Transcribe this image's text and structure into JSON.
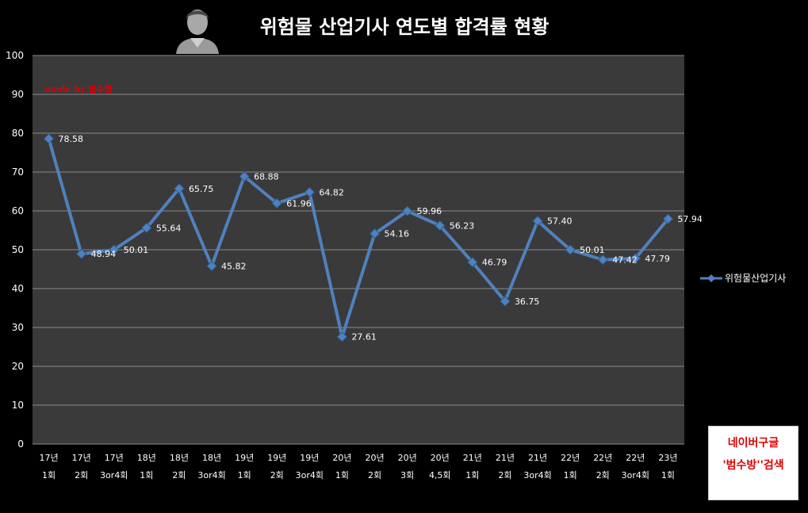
{
  "header": {
    "title": "위험물 산업기사 연도별 합격률 현황"
  },
  "watermark": {
    "text": "made by  범수형",
    "color": "#e00000"
  },
  "ad": {
    "line1": "네이버구글",
    "line2": "'범수방''검색",
    "color": "#e00000"
  },
  "colors": {
    "plot_bg": "#3a3a3a",
    "grid": "#8a8a8a",
    "series": "#4f81bd",
    "background": "#000000"
  },
  "chart_data": {
    "type": "line",
    "title": "위험물 산업기사 연도별 합격률 현황",
    "xlabel": "",
    "ylabel": "",
    "ylim": [
      0,
      100
    ],
    "yticks": [
      0,
      10,
      20,
      30,
      40,
      50,
      60,
      70,
      80,
      90,
      100
    ],
    "grid": true,
    "legend_position": "right",
    "categories": [
      [
        "17년",
        "1회"
      ],
      [
        "17년",
        "2회"
      ],
      [
        "17년",
        "3or4회"
      ],
      [
        "18년",
        "1회"
      ],
      [
        "18년",
        "2회"
      ],
      [
        "18년",
        "3or4회"
      ],
      [
        "19년",
        "1회"
      ],
      [
        "19년",
        "2회"
      ],
      [
        "19년",
        "3or4회"
      ],
      [
        "20년",
        "1회"
      ],
      [
        "20년",
        "2회"
      ],
      [
        "20년",
        "3회"
      ],
      [
        "20년",
        "4,5회"
      ],
      [
        "21년",
        "1회"
      ],
      [
        "21년",
        "2회"
      ],
      [
        "21년",
        "3or4회"
      ],
      [
        "22년",
        "1회"
      ],
      [
        "22년",
        "2회"
      ],
      [
        "22년",
        "3or4회"
      ],
      [
        "23년",
        "1회"
      ]
    ],
    "series": [
      {
        "name": "위험물산업기사",
        "values": [
          78.58,
          48.94,
          50.01,
          55.64,
          65.75,
          45.82,
          68.88,
          61.96,
          64.82,
          27.61,
          54.16,
          59.96,
          56.23,
          46.79,
          36.75,
          57.4,
          50.01,
          47.42,
          47.79,
          57.94
        ],
        "labels": [
          "78.58",
          "48.94",
          "50.01",
          "55.64",
          "65.75",
          "45.82",
          "68.88",
          "61.96",
          "64.82",
          "27.61",
          "54.16",
          "59.96",
          "56.23",
          "46.79",
          "36.75",
          "57.40",
          "50.01",
          "47.42",
          "47.79",
          "57.94"
        ]
      }
    ]
  }
}
